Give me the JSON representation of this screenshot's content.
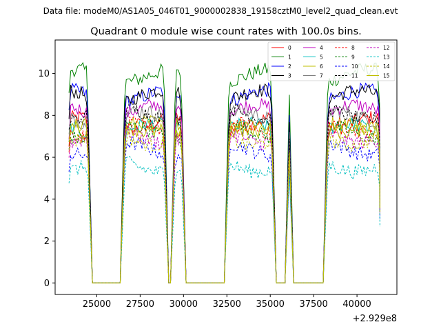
{
  "chart_data": {
    "type": "line",
    "suptitle": "Data file: modeM0/AS1A05_046T01_9000002838_19158cztM0_level2_quad_clean.evt",
    "title": "Quadrant 0 module wise count rates with 100.0s bins.",
    "xlabel": "",
    "ylabel": "",
    "x_offset_label": "+2.929e8",
    "xlim": [
      22600,
      42300
    ],
    "ylim": [
      -0.55,
      11.6
    ],
    "xticks": [
      25000,
      27500,
      30000,
      32500,
      35000,
      37500,
      40000
    ],
    "xtick_labels": [
      "25000",
      "27500",
      "30000",
      "32500",
      "35000",
      "37500",
      "40000"
    ],
    "yticks": [
      0,
      2,
      4,
      6,
      8,
      10
    ],
    "ytick_labels": [
      "0",
      "2",
      "4",
      "6",
      "8",
      "10"
    ],
    "grid": false,
    "legend_position": "top-right",
    "legend_columns": 4,
    "bin_seconds": 100,
    "segments": [
      {
        "start": 23400,
        "end": 24500
      },
      {
        "start": 26600,
        "end": 28900
      },
      {
        "start": 29500,
        "end": 29900
      },
      {
        "start": 32600,
        "end": 35100
      },
      {
        "start": 36100,
        "end": 36100
      },
      {
        "start": 38300,
        "end": 41300
      }
    ],
    "series": [
      {
        "name": "0",
        "color": "#ff0000",
        "dashed": false,
        "base": 7.6
      },
      {
        "name": "1",
        "color": "#008000",
        "dashed": false,
        "base": 9.9
      },
      {
        "name": "2",
        "color": "#0000ff",
        "dashed": false,
        "base": 8.9
      },
      {
        "name": "3",
        "color": "#000000",
        "dashed": false,
        "base": 8.9
      },
      {
        "name": "4",
        "color": "#bf00bf",
        "dashed": false,
        "base": 8.2
      },
      {
        "name": "5",
        "color": "#00bfbf",
        "dashed": false,
        "base": 7.3
      },
      {
        "name": "6",
        "color": "#bfbf00",
        "dashed": false,
        "base": 7.4
      },
      {
        "name": "7",
        "color": "#808080",
        "dashed": false,
        "base": 7.9
      },
      {
        "name": "8",
        "color": "#ff0000",
        "dashed": true,
        "base": 7.3
      },
      {
        "name": "9",
        "color": "#008000",
        "dashed": true,
        "base": 7.2
      },
      {
        "name": "10",
        "color": "#0000ff",
        "dashed": true,
        "base": 6.4
      },
      {
        "name": "11",
        "color": "#000000",
        "dashed": true,
        "base": 8.1
      },
      {
        "name": "12",
        "color": "#bf00bf",
        "dashed": true,
        "base": 7.0
      },
      {
        "name": "13",
        "color": "#00bfbf",
        "dashed": true,
        "base": 5.6
      },
      {
        "name": "14",
        "color": "#bfbf00",
        "dashed": true,
        "base": 6.9
      },
      {
        "name": "15",
        "color": "#bfbf00",
        "dashed": false,
        "base": 7.5
      }
    ]
  }
}
